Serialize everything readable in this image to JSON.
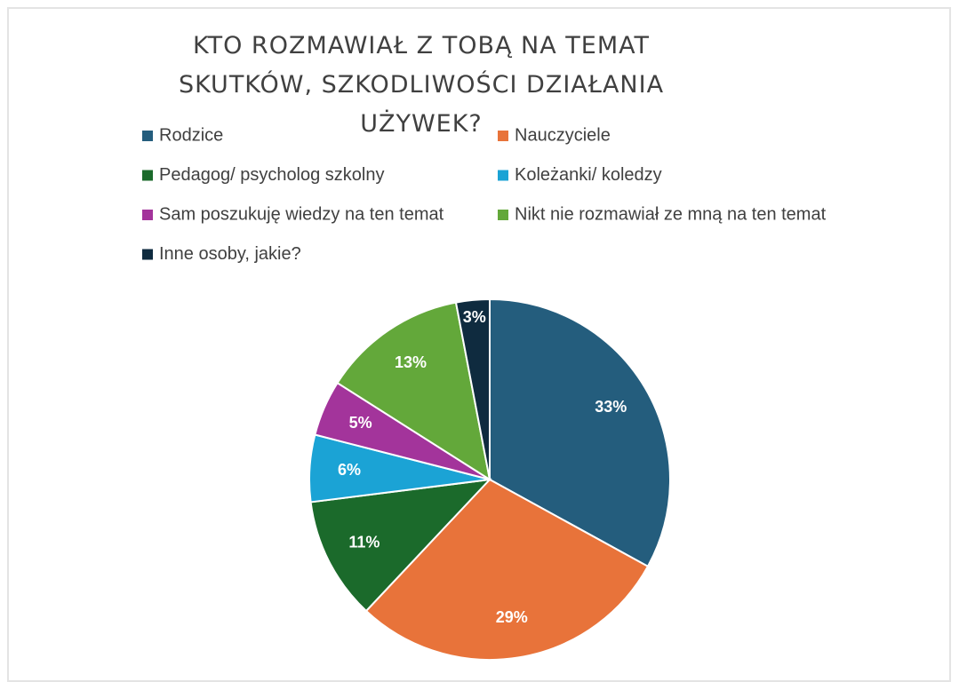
{
  "chart_data": {
    "type": "pie",
    "title": "KTO ROZMAWIAŁ Z TOBĄ NA TEMAT SKUTKÓW, SZKODLIWOŚCI DZIAŁANIA UŻYWEK?",
    "categories": [
      "Rodzice",
      "Nauczyciele",
      "Pedagog/ psycholog szkolny",
      "Koleżanki/ koledzy",
      "Sam poszukuję wiedzy na ten temat",
      "Nikt nie rozmawiał ze mną na ten temat",
      "Inne osoby, jakie?"
    ],
    "values": [
      33,
      29,
      11,
      6,
      5,
      13,
      3
    ],
    "value_labels": [
      "33%",
      "29%",
      "11%",
      "6%",
      "5%",
      "13%",
      "3%"
    ],
    "colors": [
      "#245d7d",
      "#e8733a",
      "#1b6a2b",
      "#1ba3d5",
      "#a3349b",
      "#63a83a",
      "#0f2b3f"
    ],
    "legend": "top"
  }
}
